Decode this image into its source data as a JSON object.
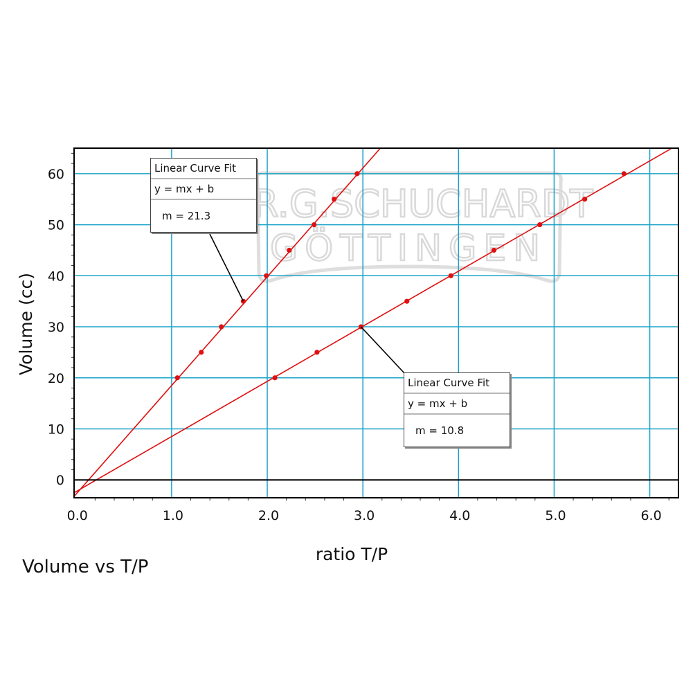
{
  "caption": "Volume vs T/P",
  "logo_text": {
    "line1": "DR.G.SCHUCHARDT",
    "line2": "GÖTTINGEN"
  },
  "fit_boxes": [
    {
      "title": "Linear Curve Fit",
      "equation": "y = mx + b",
      "slope": "m = 21.3"
    },
    {
      "title": "Linear Curve Fit",
      "equation": "y = mx + b",
      "slope": "m = 10.8"
    }
  ],
  "chart_data": {
    "type": "scatter",
    "title": "",
    "xlabel": "ratio T/P",
    "ylabel": "Volume (cc)",
    "xlim": [
      -0.02,
      6.3
    ],
    "ylim": [
      -3.5,
      65
    ],
    "x_ticks": [
      0.0,
      1.0,
      2.0,
      3.0,
      4.0,
      5.0,
      6.0
    ],
    "x_tick_labels": [
      "0.0",
      "1.0",
      "2.0",
      "3.0",
      "4.0",
      "5.0",
      "6.0"
    ],
    "y_ticks": [
      0,
      10,
      20,
      30,
      40,
      50,
      60
    ],
    "y_tick_labels": [
      "0",
      "10",
      "20",
      "30",
      "40",
      "50",
      "60"
    ],
    "grid": true,
    "colors": {
      "series": "#e01010",
      "grid": "#1aa3c8",
      "axis": "#000000",
      "leader": "#000000"
    },
    "series": [
      {
        "x": [
          1.06,
          1.31,
          1.52,
          1.75,
          1.99,
          2.23,
          2.49,
          2.7,
          2.94
        ],
        "y": [
          20,
          25,
          30,
          35,
          40,
          45,
          50,
          55,
          60
        ],
        "fit": {
          "slope": 21.3,
          "intercept": -2.8
        }
      },
      {
        "x": [
          2.08,
          2.52,
          2.98,
          3.46,
          3.92,
          4.37,
          4.85,
          5.32,
          5.73
        ],
        "y": [
          20,
          25,
          30,
          35,
          40,
          45,
          50,
          55,
          60
        ],
        "fit": {
          "slope": 10.8,
          "intercept": -2.3
        }
      }
    ]
  }
}
